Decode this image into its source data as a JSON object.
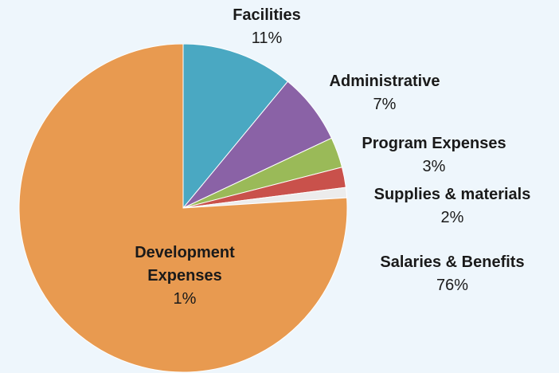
{
  "chart_data": {
    "type": "pie",
    "categories": [
      "Facilities",
      "Administrative",
      "Program Expenses",
      "Supplies & materials",
      "Development Expenses",
      "Salaries & Benefits"
    ],
    "values": [
      11,
      7,
      3,
      2,
      1,
      76
    ],
    "value_labels": [
      "11%",
      "7%",
      "3%",
      "2%",
      "1%",
      "76%"
    ],
    "colors": [
      "#4aa8c2",
      "#8a62a6",
      "#9aba58",
      "#c9514b",
      "#ececec",
      "#e89a50"
    ]
  }
}
